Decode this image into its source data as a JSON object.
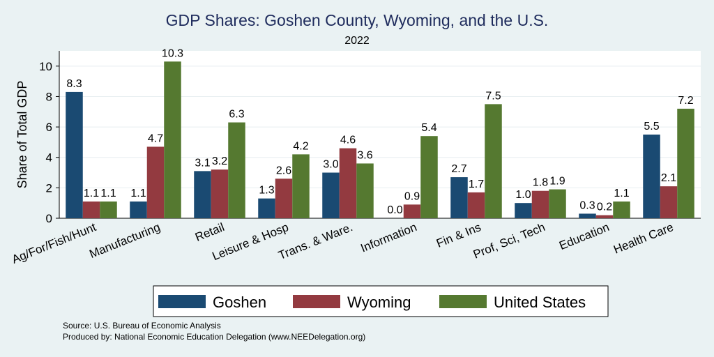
{
  "chart_data": {
    "type": "bar",
    "title": "GDP Shares: Goshen County, Wyoming, and the U.S.",
    "subtitle": "2022",
    "xlabel": "",
    "ylabel": "Share of Total GDP",
    "ylim": [
      0,
      11
    ],
    "yticks": [
      0,
      2,
      4,
      6,
      8,
      10
    ],
    "grid": true,
    "legend_position": "bottom",
    "categories": [
      "Ag/For/Fish/Hunt",
      "Manufacturing",
      "Retail",
      "Leisure & Hosp",
      "Trans. & Ware.",
      "Information",
      "Fin & Ins",
      "Prof, Sci, Tech",
      "Education",
      "Health Care"
    ],
    "series": [
      {
        "name": "Goshen",
        "color": "#1a4a72",
        "values": [
          8.3,
          1.1,
          3.1,
          1.3,
          3.0,
          0.0,
          2.7,
          1.0,
          0.3,
          5.5
        ],
        "labels": [
          "8.3",
          "1.1",
          "3.1",
          "1.3",
          "3.0",
          "0.0",
          "2.7",
          "1.0",
          "0.3",
          "5.5"
        ]
      },
      {
        "name": "Wyoming",
        "color": "#933a40",
        "values": [
          1.1,
          4.7,
          3.2,
          2.6,
          4.6,
          0.9,
          1.7,
          1.8,
          0.2,
          2.1
        ],
        "labels": [
          "1.1",
          "4.7",
          "3.2",
          "2.6",
          "4.6",
          "0.9",
          "1.7",
          "1.8",
          "0.2",
          "2.1"
        ]
      },
      {
        "name": "United States",
        "color": "#557930",
        "values": [
          1.1,
          10.3,
          6.3,
          4.2,
          3.6,
          5.4,
          7.5,
          1.9,
          1.1,
          7.2
        ],
        "labels": [
          "1.1",
          "10.3",
          "6.3",
          "4.2",
          "3.6",
          "5.4",
          "7.5",
          "1.9",
          "1.1",
          "7.2"
        ]
      }
    ]
  },
  "source": "Source: U.S. Bureau of Economic Analysis",
  "produced_by": "Produced by: National Economic Education Delegation (www.NEEDelegation.org)"
}
